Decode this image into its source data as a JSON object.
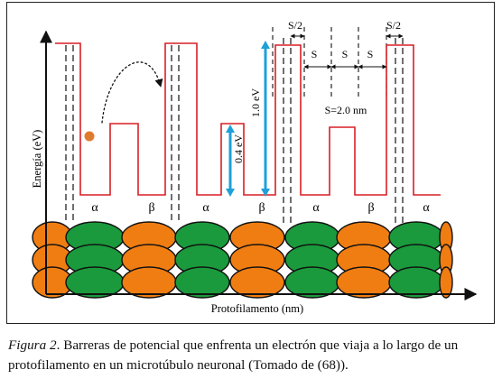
{
  "figure": {
    "y_axis_label": "Energía (eV)",
    "x_axis_label": "Protofilamento (nm)",
    "barrier_high_label": "1.0 eV",
    "barrier_low_label": "0.4 eV",
    "spacing_label": "S=2.0 nm",
    "half_spacing_label": "S/2",
    "spacing_symbol": "S",
    "subunit_labels": [
      "α",
      "β",
      "α",
      "β",
      "α",
      "β",
      "α"
    ],
    "colors": {
      "potential": "#d81f26",
      "arrow": "#1ea0d8",
      "alpha_tubulin": "#f07d12",
      "beta_tubulin": "#1a9a3c",
      "electron": "#e07b2e",
      "outline": "#111111"
    },
    "electron_icon": "filled-circle"
  },
  "caption": {
    "prefix": "Figura 2",
    "text": ". Barreras de potencial que enfrenta un electrón que viaja a lo largo de un protofilamento en un microtúbulo neuronal (Tomado de (68))."
  }
}
